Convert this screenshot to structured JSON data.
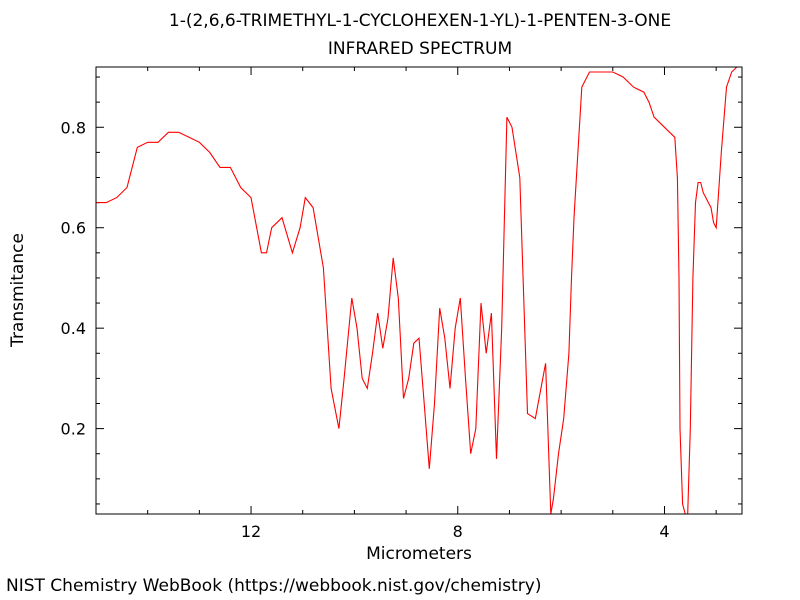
{
  "chart_data": {
    "type": "line",
    "title": "1-(2,6,6-TRIMETHYL-1-CYCLOHEXEN-1-YL)-1-PENTEN-3-ONE",
    "subtitle": "INFRARED SPECTRUM",
    "xlabel": "Micrometers",
    "ylabel": "Transmitance",
    "xlim": [
      15.0,
      2.5
    ],
    "ylim": [
      0.03,
      0.92
    ],
    "x_reversed": true,
    "xticks": [
      12,
      8,
      4
    ],
    "yticks": [
      0.2,
      0.4,
      0.6,
      0.8
    ],
    "grid": false,
    "line_color": "#ff0000",
    "series": [
      {
        "x": [
          15.0,
          14.8,
          14.6,
          14.4,
          14.2,
          14.0,
          13.8,
          13.6,
          13.4,
          13.2,
          13.0,
          12.8,
          12.6,
          12.4,
          12.2,
          12.0,
          11.8,
          11.7,
          11.6,
          11.4,
          11.2,
          11.05,
          10.95,
          10.8,
          10.6,
          10.45,
          10.3,
          10.2,
          10.05,
          9.95,
          9.85,
          9.75,
          9.65,
          9.55,
          9.45,
          9.35,
          9.25,
          9.15,
          9.05,
          8.95,
          8.85,
          8.75,
          8.65,
          8.55,
          8.45,
          8.35,
          8.25,
          8.15,
          8.05,
          7.95,
          7.85,
          7.75,
          7.65,
          7.55,
          7.45,
          7.35,
          7.25,
          7.15,
          7.05,
          6.95,
          6.8,
          6.65,
          6.5,
          6.3,
          6.2,
          6.15,
          6.05,
          5.95,
          5.85,
          5.8,
          5.75,
          5.6,
          5.45,
          5.3,
          5.2,
          5.0,
          4.8,
          4.6,
          4.4,
          4.3,
          4.2,
          4.0,
          3.8,
          3.75,
          3.72,
          3.7,
          3.65,
          3.6,
          3.55,
          3.5,
          3.45,
          3.4,
          3.35,
          3.3,
          3.25,
          3.2,
          3.15,
          3.1,
          3.05,
          3.0,
          2.9,
          2.8,
          2.7,
          2.6,
          2.5
        ],
        "y": [
          0.65,
          0.65,
          0.66,
          0.68,
          0.76,
          0.77,
          0.77,
          0.79,
          0.79,
          0.78,
          0.77,
          0.75,
          0.72,
          0.72,
          0.68,
          0.66,
          0.55,
          0.55,
          0.6,
          0.62,
          0.55,
          0.6,
          0.66,
          0.64,
          0.52,
          0.28,
          0.2,
          0.3,
          0.46,
          0.4,
          0.3,
          0.28,
          0.35,
          0.43,
          0.36,
          0.42,
          0.54,
          0.46,
          0.26,
          0.3,
          0.37,
          0.38,
          0.25,
          0.12,
          0.25,
          0.44,
          0.38,
          0.28,
          0.4,
          0.46,
          0.3,
          0.15,
          0.2,
          0.45,
          0.35,
          0.43,
          0.14,
          0.4,
          0.82,
          0.8,
          0.7,
          0.23,
          0.22,
          0.33,
          0.03,
          0.06,
          0.15,
          0.22,
          0.35,
          0.5,
          0.62,
          0.88,
          0.91,
          0.91,
          0.91,
          0.91,
          0.9,
          0.88,
          0.87,
          0.85,
          0.82,
          0.8,
          0.78,
          0.7,
          0.5,
          0.2,
          0.05,
          0.03,
          0.03,
          0.2,
          0.5,
          0.65,
          0.69,
          0.69,
          0.67,
          0.66,
          0.65,
          0.64,
          0.61,
          0.6,
          0.75,
          0.88,
          0.91,
          0.92,
          0.92
        ]
      }
    ]
  },
  "footer": "NIST Chemistry WebBook (https://webbook.nist.gov/chemistry)"
}
